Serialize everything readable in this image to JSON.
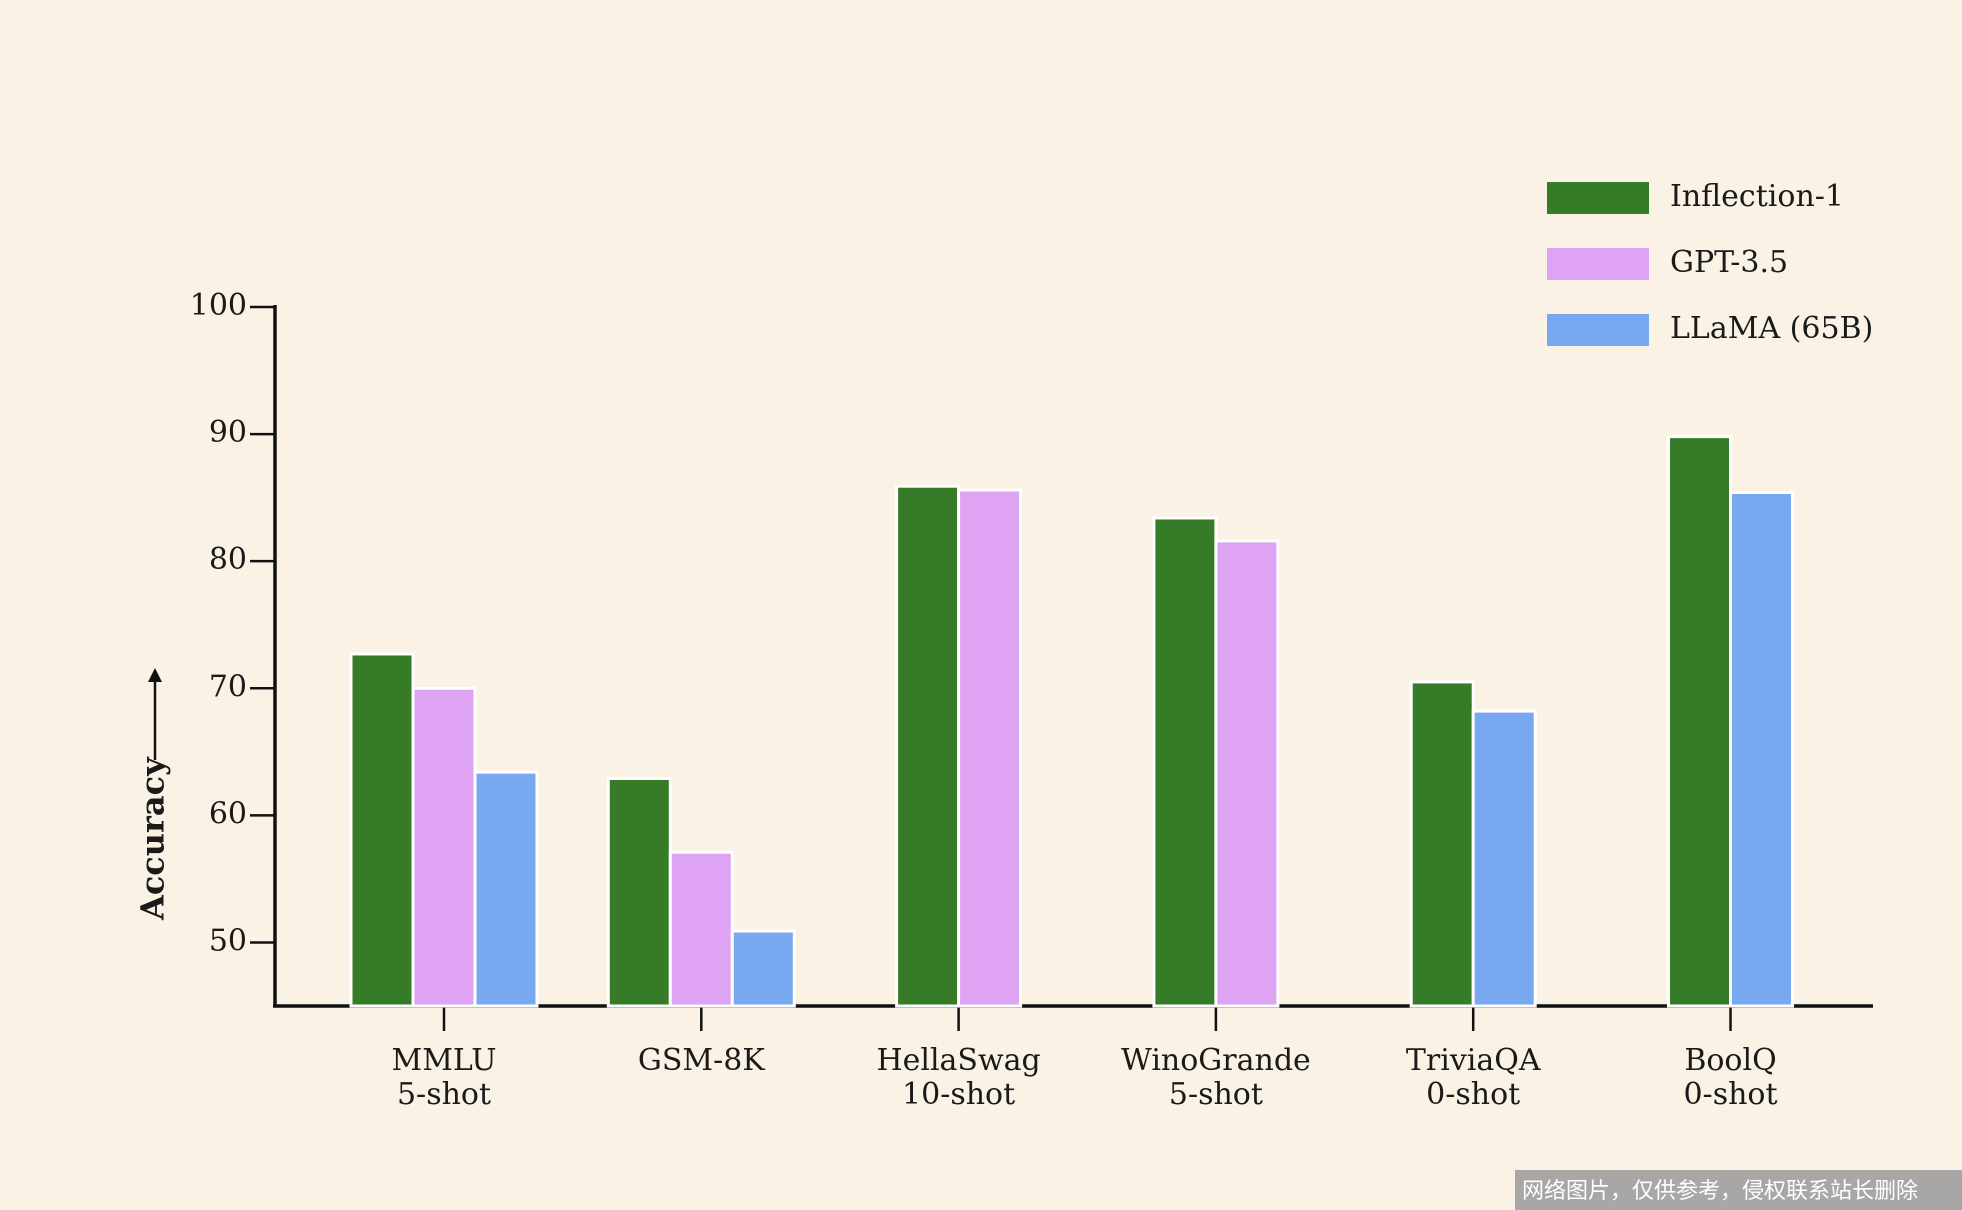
{
  "chart_data": {
    "type": "bar",
    "y_label": "Accuracy",
    "categories": [
      [
        "MMLU",
        "5-shot"
      ],
      [
        "GSM-8K",
        null
      ],
      [
        "HellaSwag",
        "10-shot"
      ],
      [
        "WinoGrande",
        "5-shot"
      ],
      [
        "TriviaQA",
        "0-shot"
      ],
      [
        "BoolQ",
        "0-shot"
      ]
    ],
    "series": [
      {
        "name": "Inflection-1",
        "color": "#367b27",
        "values": [
          72.7,
          62.9,
          85.9,
          83.4,
          70.5,
          89.8
        ]
      },
      {
        "name": "GPT-3.5",
        "color": "#dea3f2",
        "values": [
          70.0,
          57.1,
          85.6,
          81.6,
          null,
          null
        ]
      },
      {
        "name": "LLaMA (65B)",
        "color": "#78a8f0",
        "values": [
          63.4,
          50.9,
          null,
          null,
          68.2,
          85.4
        ]
      }
    ],
    "ylim": [
      45,
      100
    ],
    "yticks": [
      50,
      60,
      70,
      80,
      90,
      100
    ],
    "legend": "upper-right",
    "watermark": "网络图片，仅供参考，侵权联系站长删除"
  }
}
